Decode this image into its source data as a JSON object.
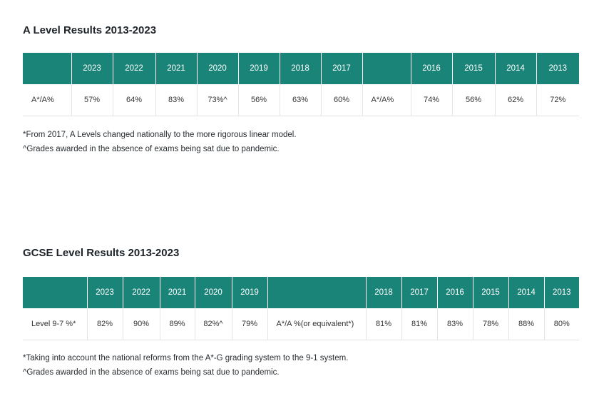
{
  "a_level": {
    "title": "A Level Results 2013-2023",
    "header": [
      "",
      "2023",
      "2022",
      "2021",
      "2020",
      "2019",
      "2018",
      "2017",
      "",
      "2016",
      "2015",
      "2014",
      "2013"
    ],
    "row": [
      "A*/A%",
      "57%",
      "64%",
      "83%",
      "73%^",
      "56%",
      "63%",
      "60%",
      "A*/A%",
      "74%",
      "56%",
      "62%",
      "72%"
    ],
    "notes": [
      "*From 2017, A Levels changed nationally to the more rigorous linear model.",
      "^Grades awarded in the absence of exams being sat due to pandemic."
    ]
  },
  "gcse": {
    "title": "GCSE Level Results 2013-2023",
    "header": [
      "",
      "2023",
      "2022",
      "2021",
      "2020",
      "2019",
      "",
      "2018",
      "2017",
      "2016",
      "2015",
      "2014",
      "2013"
    ],
    "row": [
      "Level 9-7 %*",
      "82%",
      "90%",
      "89%",
      "82%^",
      "79%",
      "A*/A %(or equivalent*)",
      "81%",
      "81%",
      "83%",
      "78%",
      "88%",
      "80%"
    ],
    "notes": [
      "*Taking into account the national reforms from the A*-G grading system to the 9-1 system.",
      "^Grades awarded in the absence of exams being sat due to pandemic."
    ]
  },
  "colors": {
    "header_bg": "#1b8478",
    "header_text": "#ffffff",
    "border": "#dfe3e6"
  }
}
